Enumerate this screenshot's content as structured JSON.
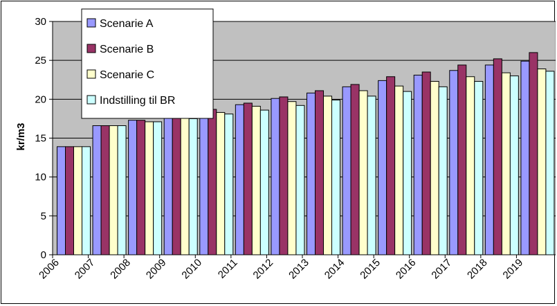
{
  "chart_data": {
    "type": "bar",
    "ylabel": "kr/m3",
    "ylim": [
      0,
      30
    ],
    "yticks": [
      0,
      5,
      10,
      15,
      20,
      25,
      30
    ],
    "grid": "horizontal",
    "legend_position": "top-left",
    "plot_background": "#c0c0c0",
    "categories": [
      "2006",
      "2007",
      "2008",
      "2009",
      "2010",
      "2011",
      "2012",
      "2013",
      "2014",
      "2015",
      "2016",
      "2017",
      "2018",
      "2019"
    ],
    "series": [
      {
        "name": "Scenarie A",
        "color": "#9999ff",
        "values": [
          13.9,
          16.6,
          17.3,
          18.0,
          18.7,
          19.3,
          20.1,
          20.8,
          21.6,
          22.4,
          23.1,
          23.7,
          24.4,
          24.9
        ]
      },
      {
        "name": "Scenarie B",
        "color": "#993366",
        "values": [
          13.9,
          16.6,
          17.3,
          18.0,
          18.7,
          19.5,
          20.3,
          21.1,
          21.9,
          22.9,
          23.5,
          24.4,
          25.2,
          26.0
        ]
      },
      {
        "name": "Scenarie C",
        "color": "#ffffcc",
        "values": [
          13.9,
          16.6,
          17.1,
          17.8,
          18.3,
          19.1,
          19.7,
          20.4,
          21.1,
          21.7,
          22.3,
          22.9,
          23.4,
          23.9
        ]
      },
      {
        "name": "Indstilling til BR",
        "color": "#ccffff",
        "values": [
          13.9,
          16.6,
          17.1,
          17.5,
          18.1,
          18.6,
          19.2,
          19.9,
          20.4,
          21.0,
          21.6,
          22.3,
          23.0,
          23.6
        ]
      }
    ]
  }
}
